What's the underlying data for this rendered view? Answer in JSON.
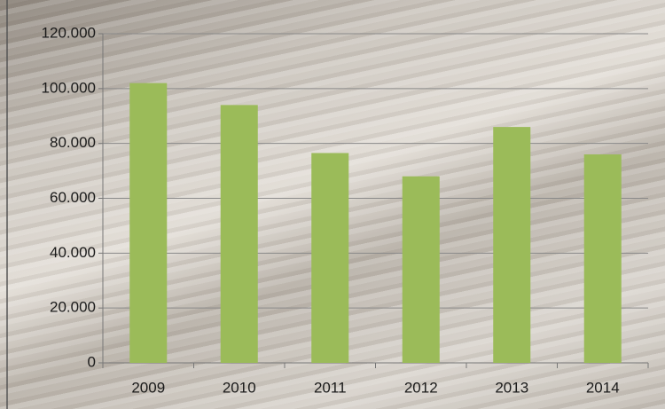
{
  "chart_data": {
    "type": "bar",
    "categories": [
      "2009",
      "2010",
      "2011",
      "2012",
      "2013",
      "2014"
    ],
    "values": [
      102000,
      94000,
      76500,
      68000,
      86000,
      76000
    ],
    "color": "#9bbb59",
    "ylim": [
      0,
      120000
    ],
    "yticks": [
      0,
      {
        "value": 20000,
        "label": "20.000"
      },
      {
        "value": 40000,
        "label": "40.000"
      },
      {
        "value": 60000,
        "label": "60.000"
      },
      {
        "value": 80000,
        "label": "80.000"
      },
      {
        "value": 100000,
        "label": "100.000"
      },
      {
        "value": 120000,
        "label": "120.000"
      }
    ],
    "grid": true
  }
}
